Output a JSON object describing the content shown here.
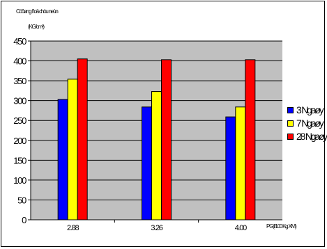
{
  "chart_data": {
    "type": "bar",
    "title": "",
    "ylabel_line1": "Cöôøng ñoä chòu neùn",
    "ylabel_line2": "(KG/cm²)",
    "xlabel": "PG(l/100 Kg XM)",
    "categories": [
      "2.88",
      "3.26",
      "4.00"
    ],
    "series": [
      {
        "name": "3 Ngaøy",
        "values": [
          303,
          284,
          259
        ],
        "color": "#0000ff"
      },
      {
        "name": "7 Ngaøy",
        "values": [
          354,
          323,
          284
        ],
        "color": "#ffff00"
      },
      {
        "name": "28 Ngaøy",
        "values": [
          405,
          403,
          403
        ],
        "color": "#ff0000"
      }
    ],
    "ylim": [
      0,
      450
    ],
    "yticks": [
      0,
      50,
      100,
      150,
      200,
      250,
      300,
      350,
      400,
      450
    ],
    "grid": true,
    "legend": "right",
    "plot_background": "#c0c0c0"
  }
}
